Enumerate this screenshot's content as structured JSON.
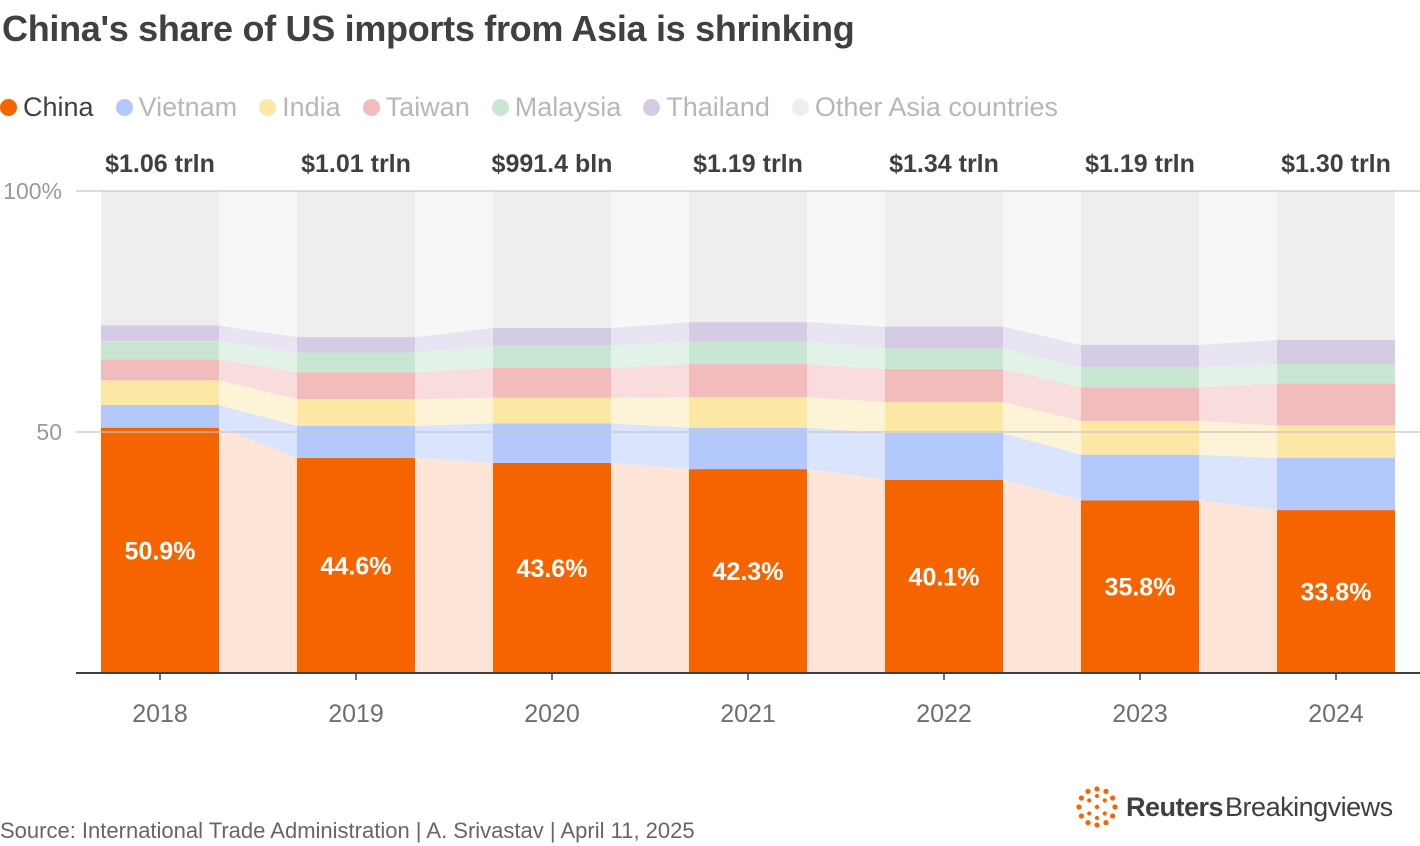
{
  "title": "China's share of US imports from Asia is shrinking",
  "legend": [
    {
      "label": "China",
      "color": "#f66400"
    },
    {
      "label": "Vietnam",
      "color": "#b3c8fd"
    },
    {
      "label": "India",
      "color": "#fde7a5"
    },
    {
      "label": "Taiwan",
      "color": "#f3bcbc"
    },
    {
      "label": "Malaysia",
      "color": "#c8e6d2"
    },
    {
      "label": "Thailand",
      "color": "#d5cbe5"
    },
    {
      "label": "Other Asia countries",
      "color": "#eeeeee"
    }
  ],
  "chart_data": {
    "type": "bar",
    "stacked": true,
    "normalized": true,
    "categories": [
      "2018",
      "2019",
      "2020",
      "2021",
      "2022",
      "2023",
      "2024"
    ],
    "series": [
      {
        "name": "China",
        "values": [
          50.9,
          44.6,
          43.6,
          42.3,
          40.1,
          35.8,
          33.8
        ],
        "color": "#f66400",
        "light": "#fee5d7"
      },
      {
        "name": "Vietnam",
        "values": [
          4.7,
          6.7,
          8.2,
          8.6,
          9.7,
          9.5,
          10.8
        ],
        "color": "#b3c8fd",
        "light": "#dae4fd"
      },
      {
        "name": "India",
        "values": [
          5.1,
          5.5,
          5.3,
          6.3,
          6.4,
          7.0,
          6.7
        ],
        "color": "#fde7a5",
        "light": "#fdf4d8"
      },
      {
        "name": "Taiwan",
        "values": [
          4.4,
          5.6,
          6.2,
          6.9,
          6.9,
          7.0,
          8.8
        ],
        "color": "#f3bcbc",
        "light": "#f9dcdc"
      },
      {
        "name": "Malaysia",
        "values": [
          3.8,
          4.1,
          4.6,
          4.7,
          4.2,
          4.1,
          4.0
        ],
        "color": "#c8e6d2",
        "light": "#e3f2e8"
      },
      {
        "name": "Thailand",
        "values": [
          3.2,
          3.2,
          3.7,
          4.0,
          4.6,
          4.7,
          5.0
        ],
        "color": "#d5cbe5",
        "light": "#e9e4f1"
      },
      {
        "name": "Other Asia countries",
        "values": [
          27.9,
          30.3,
          28.4,
          27.2,
          28.1,
          31.9,
          30.9
        ],
        "color": "#eeeeee",
        "light": "#f7f7f7"
      }
    ],
    "totals": [
      "$1.06 trln",
      "$1.01 trln",
      "$991.4 bln",
      "$1.19 trln",
      "$1.34 trln",
      "$1.19 trln",
      "$1.30 trln"
    ],
    "data_labels": [
      "50.9%",
      "44.6%",
      "43.6%",
      "42.3%",
      "40.1%",
      "35.8%",
      "33.8%"
    ],
    "yticks": [
      {
        "value": 100,
        "label": "100%"
      },
      {
        "value": 50,
        "label": "50"
      }
    ],
    "ylim": [
      0,
      100
    ],
    "xlabel": "",
    "ylabel": ""
  },
  "footer": {
    "source": "Source: International Trade Administration | A. Srivastav | April 11, 2025",
    "logo_brand": "Reuters",
    "logo_sub": "Breakingviews",
    "logo_icon": "reuters-dotted-circle-icon"
  }
}
